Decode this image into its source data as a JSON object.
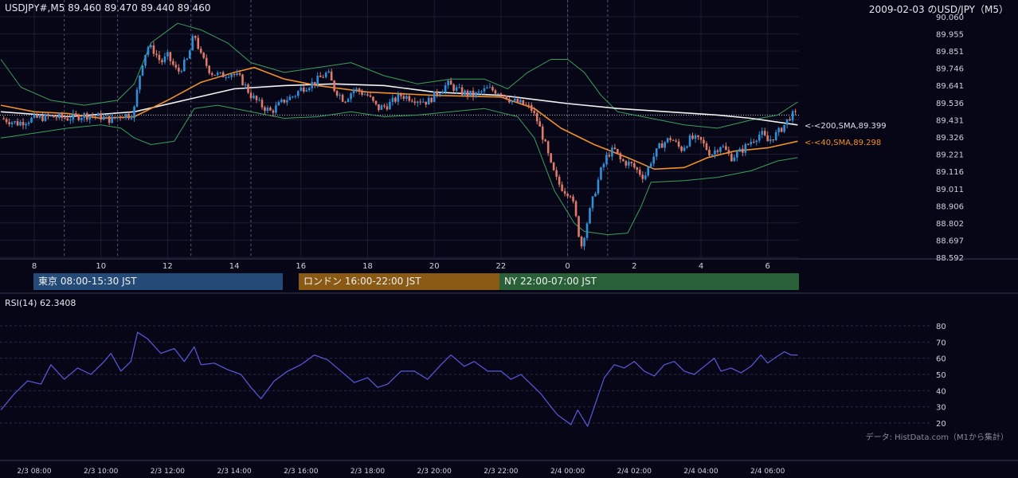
{
  "header": {
    "symbol_info": "USDJPY#,M5 89.460 89.470 89.440 89.460",
    "title": "2009-02-03 のUSD/JPY（M5）"
  },
  "colors": {
    "background": "#060616",
    "grid": "#1c1c33",
    "up": "#2f8fd8",
    "down": "#e07a68",
    "bollinger": "#3aa05a",
    "sma200": "#f2f2f2",
    "sma40": "#f0902a",
    "rsi": "#5a5ae0",
    "tokyo": "#244a78",
    "london": "#8a5a14",
    "ny": "#2a6038"
  },
  "sessions": [
    {
      "label": "東京 08:00-15:30 JST"
    },
    {
      "label": "ロンドン 16:00-22:00 JST"
    },
    {
      "label": "NY 22:00-07:00 JST"
    }
  ],
  "rsi_label": "RSI(14) 62.3408",
  "credit": "データ: HistData.com（M1から集計）",
  "chart_data": [
    {
      "type": "candlestick",
      "title": "2009-02-03 のUSD/JPY（M5）",
      "symbol": "USDJPY#,M5",
      "last": {
        "open": 89.46,
        "high": 89.47,
        "low": 89.44,
        "close": 89.46
      },
      "ylim": [
        88.592,
        90.06
      ],
      "y_ticks": [
        "90.060",
        "89.955",
        "89.851",
        "89.746",
        "89.641",
        "89.536",
        "89.431",
        "89.326",
        "89.221",
        "89.116",
        "89.011",
        "88.906",
        "88.802",
        "88.697",
        "88.592"
      ],
      "x_ticks": [
        "8",
        "10",
        "12",
        "14",
        "16",
        "18",
        "20",
        "22",
        "0",
        "2",
        "4",
        "6"
      ],
      "annotations": [
        {
          "label": "<-<200,SMA,89.399",
          "value": 89.399
        },
        {
          "label": "<-<40,SMA,89.298",
          "value": 89.298
        }
      ],
      "price_path": [
        [
          7.0,
          89.44
        ],
        [
          7.5,
          89.41
        ],
        [
          8.0,
          89.44
        ],
        [
          8.5,
          89.45
        ],
        [
          9.0,
          89.44
        ],
        [
          9.5,
          89.46
        ],
        [
          10.0,
          89.45
        ],
        [
          10.3,
          89.43
        ],
        [
          10.6,
          89.46
        ],
        [
          10.9,
          89.46
        ],
        [
          11.0,
          89.5
        ],
        [
          11.2,
          89.75
        ],
        [
          11.4,
          89.88
        ],
        [
          11.6,
          89.85
        ],
        [
          11.8,
          89.78
        ],
        [
          12.0,
          89.82
        ],
        [
          12.3,
          89.72
        ],
        [
          12.6,
          89.8
        ],
        [
          12.8,
          89.96
        ],
        [
          13.0,
          89.82
        ],
        [
          13.3,
          89.72
        ],
        [
          13.6,
          89.7
        ],
        [
          13.9,
          89.72
        ],
        [
          14.2,
          89.68
        ],
        [
          14.5,
          89.58
        ],
        [
          14.8,
          89.52
        ],
        [
          15.1,
          89.48
        ],
        [
          15.5,
          89.55
        ],
        [
          15.8,
          89.58
        ],
        [
          16.0,
          89.62
        ],
        [
          16.4,
          89.66
        ],
        [
          16.8,
          89.72
        ],
        [
          17.0,
          89.62
        ],
        [
          17.3,
          89.55
        ],
        [
          17.6,
          89.62
        ],
        [
          18.0,
          89.58
        ],
        [
          18.3,
          89.5
        ],
        [
          18.6,
          89.52
        ],
        [
          19.0,
          89.58
        ],
        [
          19.4,
          89.56
        ],
        [
          19.8,
          89.54
        ],
        [
          20.0,
          89.58
        ],
        [
          20.4,
          89.65
        ],
        [
          20.8,
          89.6
        ],
        [
          21.2,
          89.58
        ],
        [
          21.6,
          89.62
        ],
        [
          22.0,
          89.6
        ],
        [
          22.3,
          89.55
        ],
        [
          22.6,
          89.53
        ],
        [
          22.9,
          89.5
        ],
        [
          23.1,
          89.42
        ],
        [
          23.3,
          89.3
        ],
        [
          23.5,
          89.15
        ],
        [
          23.7,
          89.05
        ],
        [
          23.9,
          89.0
        ],
        [
          24.1,
          88.98
        ],
        [
          24.3,
          88.78
        ],
        [
          24.4,
          88.65
        ],
        [
          24.6,
          88.82
        ],
        [
          24.8,
          88.98
        ],
        [
          25.0,
          89.12
        ],
        [
          25.2,
          89.22
        ],
        [
          25.4,
          89.25
        ],
        [
          25.6,
          89.18
        ],
        [
          25.9,
          89.16
        ],
        [
          26.1,
          89.12
        ],
        [
          26.3,
          89.08
        ],
        [
          26.5,
          89.18
        ],
        [
          26.8,
          89.28
        ],
        [
          27.1,
          89.32
        ],
        [
          27.4,
          89.25
        ],
        [
          27.7,
          89.32
        ],
        [
          28.0,
          89.3
        ],
        [
          28.3,
          89.22
        ],
        [
          28.6,
          89.28
        ],
        [
          28.9,
          89.2
        ],
        [
          29.2,
          89.24
        ],
        [
          29.5,
          89.3
        ],
        [
          29.8,
          89.35
        ],
        [
          30.0,
          89.3
        ],
        [
          30.3,
          89.35
        ],
        [
          30.5,
          89.4
        ],
        [
          30.7,
          89.46
        ],
        [
          30.9,
          89.46
        ]
      ],
      "series": [
        {
          "name": "200,SMA",
          "points": [
            [
              7.0,
              89.48
            ],
            [
              9.0,
              89.45
            ],
            [
              11.0,
              89.48
            ],
            [
              12.5,
              89.55
            ],
            [
              14.0,
              89.62
            ],
            [
              15.5,
              89.64
            ],
            [
              17.0,
              89.65
            ],
            [
              18.5,
              89.64
            ],
            [
              20.0,
              89.6
            ],
            [
              22.0,
              89.58
            ],
            [
              24.0,
              89.53
            ],
            [
              25.5,
              89.5
            ],
            [
              27.0,
              89.48
            ],
            [
              28.5,
              89.46
            ],
            [
              29.5,
              89.44
            ],
            [
              30.9,
              89.4
            ]
          ]
        },
        {
          "name": "40,SMA",
          "points": [
            [
              7.0,
              89.52
            ],
            [
              8.0,
              89.48
            ],
            [
              9.0,
              89.47
            ],
            [
              10.0,
              89.44
            ],
            [
              11.0,
              89.45
            ],
            [
              12.0,
              89.55
            ],
            [
              13.0,
              89.66
            ],
            [
              14.0,
              89.72
            ],
            [
              14.6,
              89.75
            ],
            [
              15.5,
              89.68
            ],
            [
              16.5,
              89.64
            ],
            [
              18.0,
              89.6
            ],
            [
              20.0,
              89.58
            ],
            [
              22.0,
              89.57
            ],
            [
              23.0,
              89.5
            ],
            [
              23.8,
              89.38
            ],
            [
              24.8,
              89.28
            ],
            [
              25.8,
              89.2
            ],
            [
              26.6,
              89.13
            ],
            [
              27.5,
              89.14
            ],
            [
              28.2,
              89.2
            ],
            [
              29.0,
              89.24
            ],
            [
              30.0,
              89.26
            ],
            [
              30.9,
              89.3
            ]
          ]
        },
        {
          "name": "BB-upper",
          "points": [
            [
              7.0,
              89.8
            ],
            [
              7.6,
              89.63
            ],
            [
              8.5,
              89.55
            ],
            [
              9.5,
              89.52
            ],
            [
              10.5,
              89.55
            ],
            [
              11.0,
              89.65
            ],
            [
              11.5,
              89.9
            ],
            [
              12.3,
              90.02
            ],
            [
              13.0,
              89.98
            ],
            [
              13.8,
              89.9
            ],
            [
              14.5,
              89.78
            ],
            [
              15.5,
              89.72
            ],
            [
              16.5,
              89.75
            ],
            [
              17.5,
              89.78
            ],
            [
              18.5,
              89.7
            ],
            [
              19.5,
              89.65
            ],
            [
              20.5,
              89.68
            ],
            [
              21.5,
              89.68
            ],
            [
              22.2,
              89.62
            ],
            [
              22.8,
              89.72
            ],
            [
              23.5,
              89.8
            ],
            [
              24.0,
              89.8
            ],
            [
              24.5,
              89.72
            ],
            [
              25.0,
              89.58
            ],
            [
              25.5,
              89.48
            ],
            [
              26.5,
              89.44
            ],
            [
              27.5,
              89.4
            ],
            [
              28.5,
              89.38
            ],
            [
              29.5,
              89.43
            ],
            [
              30.3,
              89.46
            ],
            [
              30.9,
              89.54
            ]
          ]
        },
        {
          "name": "BB-lower",
          "points": [
            [
              7.0,
              89.32
            ],
            [
              8.0,
              89.35
            ],
            [
              9.0,
              89.38
            ],
            [
              10.0,
              89.4
            ],
            [
              10.6,
              89.38
            ],
            [
              11.0,
              89.32
            ],
            [
              11.5,
              89.28
            ],
            [
              12.2,
              89.3
            ],
            [
              12.8,
              89.5
            ],
            [
              13.5,
              89.52
            ],
            [
              14.5,
              89.48
            ],
            [
              15.5,
              89.44
            ],
            [
              16.5,
              89.45
            ],
            [
              17.5,
              89.48
            ],
            [
              18.5,
              89.45
            ],
            [
              19.5,
              89.46
            ],
            [
              20.5,
              89.48
            ],
            [
              21.5,
              89.5
            ],
            [
              22.5,
              89.45
            ],
            [
              23.0,
              89.32
            ],
            [
              23.6,
              89.0
            ],
            [
              24.2,
              88.8
            ],
            [
              24.5,
              88.75
            ],
            [
              25.2,
              88.73
            ],
            [
              25.8,
              88.74
            ],
            [
              26.2,
              88.9
            ],
            [
              26.5,
              89.05
            ],
            [
              27.5,
              89.06
            ],
            [
              28.5,
              89.08
            ],
            [
              29.5,
              89.12
            ],
            [
              30.3,
              89.18
            ],
            [
              30.9,
              89.2
            ]
          ]
        }
      ]
    },
    {
      "type": "line",
      "title": "RSI(14) 62.3408",
      "ylim": [
        15,
        85
      ],
      "y_ticks": [
        "80",
        "70",
        "60",
        "50",
        "40",
        "30",
        "20"
      ],
      "x_ticks": [
        "2/3 08:00",
        "2/3 10:00",
        "2/3 12:00",
        "2/3 14:00",
        "2/3 16:00",
        "2/3 18:00",
        "2/3 20:00",
        "2/3 22:00",
        "2/4 00:00",
        "2/4 02:00",
        "2/4 04:00",
        "2/4 06:00"
      ],
      "series": [
        {
          "name": "RSI(14)",
          "points": [
            [
              7.0,
              28
            ],
            [
              7.4,
              38
            ],
            [
              7.8,
              46
            ],
            [
              8.2,
              44
            ],
            [
              8.5,
              56
            ],
            [
              8.9,
              47
            ],
            [
              9.3,
              54
            ],
            [
              9.7,
              50
            ],
            [
              10.1,
              58
            ],
            [
              10.3,
              63
            ],
            [
              10.6,
              52
            ],
            [
              10.9,
              58
            ],
            [
              11.1,
              76
            ],
            [
              11.4,
              72
            ],
            [
              11.8,
              63
            ],
            [
              12.2,
              66
            ],
            [
              12.5,
              58
            ],
            [
              12.8,
              67
            ],
            [
              13.0,
              56
            ],
            [
              13.4,
              57
            ],
            [
              13.8,
              53
            ],
            [
              14.2,
              50
            ],
            [
              14.5,
              42
            ],
            [
              14.8,
              35
            ],
            [
              15.2,
              46
            ],
            [
              15.6,
              52
            ],
            [
              16.0,
              56
            ],
            [
              16.4,
              62
            ],
            [
              16.8,
              59
            ],
            [
              17.2,
              52
            ],
            [
              17.6,
              45
            ],
            [
              18.0,
              48
            ],
            [
              18.3,
              42
            ],
            [
              18.6,
              44
            ],
            [
              19.0,
              52
            ],
            [
              19.4,
              52
            ],
            [
              19.8,
              47
            ],
            [
              20.2,
              56
            ],
            [
              20.5,
              62
            ],
            [
              20.9,
              55
            ],
            [
              21.2,
              58
            ],
            [
              21.6,
              52
            ],
            [
              22.0,
              52
            ],
            [
              22.3,
              47
            ],
            [
              22.6,
              50
            ],
            [
              22.9,
              44
            ],
            [
              23.2,
              38
            ],
            [
              23.5,
              30
            ],
            [
              23.7,
              25
            ],
            [
              23.9,
              22
            ],
            [
              24.1,
              19
            ],
            [
              24.3,
              28
            ],
            [
              24.6,
              18
            ],
            [
              24.8,
              30
            ],
            [
              25.1,
              48
            ],
            [
              25.4,
              56
            ],
            [
              25.7,
              54
            ],
            [
              26.0,
              58
            ],
            [
              26.3,
              52
            ],
            [
              26.6,
              49
            ],
            [
              26.9,
              56
            ],
            [
              27.2,
              58
            ],
            [
              27.5,
              52
            ],
            [
              27.8,
              50
            ],
            [
              28.1,
              55
            ],
            [
              28.4,
              60
            ],
            [
              28.6,
              52
            ],
            [
              28.9,
              54
            ],
            [
              29.2,
              51
            ],
            [
              29.5,
              55
            ],
            [
              29.8,
              62
            ],
            [
              30.0,
              57
            ],
            [
              30.2,
              60
            ],
            [
              30.5,
              64
            ],
            [
              30.7,
              62
            ],
            [
              30.9,
              62
            ]
          ]
        }
      ]
    }
  ]
}
